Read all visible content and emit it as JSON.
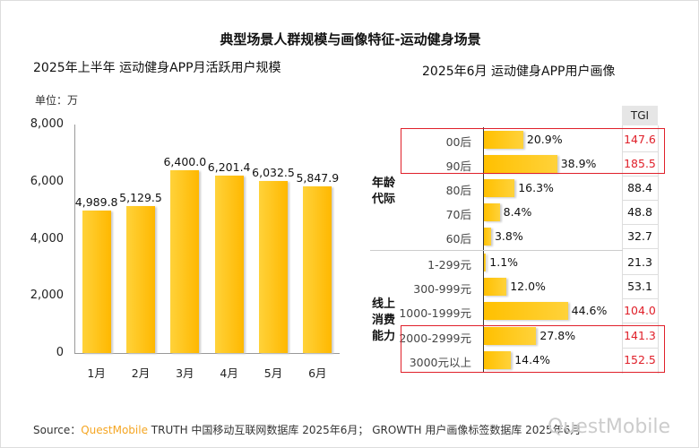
{
  "title": "典型场景人群规模与画像特征-运动健身场景",
  "footer": {
    "prefix": "Source：",
    "brand": "QuestMobile",
    "text": " TRUTH 中国移动互联网数据库 2025年6月； GROWTH 用户画像标签数据库 2025年6月",
    "watermark": "QuestMobile",
    "brand_color": "#f5a623"
  },
  "chart_data": [
    {
      "type": "bar",
      "title": "2025年上半年 运动健身APP月活跃用户规模",
      "unit_label": "单位：万",
      "categories": [
        "1月",
        "2月",
        "3月",
        "4月",
        "5月",
        "6月"
      ],
      "values": [
        4989.8,
        5129.5,
        6400.0,
        6201.4,
        6032.5,
        5847.9
      ],
      "value_labels": [
        "4,989.8",
        "5,129.5",
        "6,400.0",
        "6,201.4",
        "6,032.5",
        "5,847.9"
      ],
      "yticks": [
        "0",
        "2,000",
        "4,000",
        "6,000",
        "8,000"
      ],
      "ylim": [
        0,
        8000
      ],
      "bar_color": "#ffc000"
    },
    {
      "type": "bar",
      "orientation": "horizontal",
      "title": "2025年6月 运动健身APP用户画像",
      "tgi_header": "TGI",
      "groups": [
        {
          "label": "年龄代际",
          "lines": [
            "年龄",
            "代际"
          ]
        },
        {
          "label": "线上消费能力",
          "lines": [
            "线上",
            "消费",
            "能力"
          ]
        }
      ],
      "rows": [
        {
          "category": "00后",
          "value": 20.9,
          "label": "20.9%",
          "tgi": "147.6",
          "highlight": true
        },
        {
          "category": "90后",
          "value": 38.9,
          "label": "38.9%",
          "tgi": "185.5",
          "highlight": true
        },
        {
          "category": "80后",
          "value": 16.3,
          "label": "16.3%",
          "tgi": "88.4",
          "highlight": false
        },
        {
          "category": "70后",
          "value": 8.4,
          "label": "8.4%",
          "tgi": "48.8",
          "highlight": false
        },
        {
          "category": "60后",
          "value": 3.8,
          "label": "3.8%",
          "tgi": "32.7",
          "highlight": false
        },
        {
          "category": "1-299元",
          "value": 1.1,
          "label": "1.1%",
          "tgi": "21.3",
          "highlight": false
        },
        {
          "category": "300-999元",
          "value": 12.0,
          "label": "12.0%",
          "tgi": "53.1",
          "highlight": false
        },
        {
          "category": "1000-1999元",
          "value": 44.6,
          "label": "44.6%",
          "tgi": "104.0",
          "highlight": true
        },
        {
          "category": "2000-2999元",
          "value": 27.8,
          "label": "27.8%",
          "tgi": "141.3",
          "highlight": true
        },
        {
          "category": "3000元以上",
          "value": 14.4,
          "label": "14.4%",
          "tgi": "152.5",
          "highlight": true
        }
      ],
      "highlight_color": "#e0202a"
    }
  ]
}
